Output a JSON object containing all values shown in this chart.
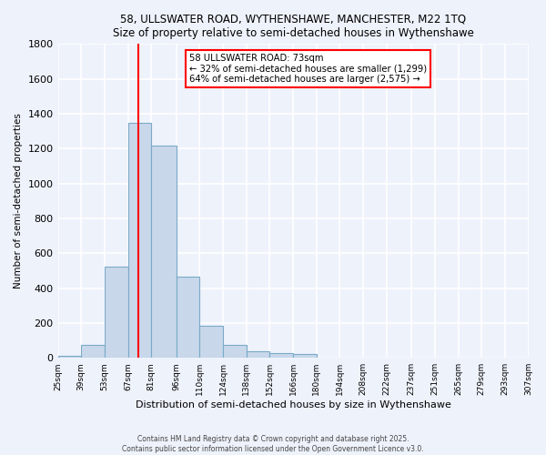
{
  "title1": "58, ULLSWATER ROAD, WYTHENSHAWE, MANCHESTER, M22 1TQ",
  "title2": "Size of property relative to semi-detached houses in Wythenshawe",
  "xlabel": "Distribution of semi-detached houses by size in Wythenshawe",
  "ylabel": "Number of semi-detached properties",
  "footer1": "Contains HM Land Registry data © Crown copyright and database right 2025.",
  "footer2": "Contains public sector information licensed under the Open Government Licence v3.0.",
  "bin_labels": [
    "25sqm",
    "39sqm",
    "53sqm",
    "67sqm",
    "81sqm",
    "96sqm",
    "110sqm",
    "124sqm",
    "138sqm",
    "152sqm",
    "166sqm",
    "180sqm",
    "194sqm",
    "208sqm",
    "222sqm",
    "237sqm",
    "251sqm",
    "265sqm",
    "279sqm",
    "293sqm",
    "307sqm"
  ],
  "bar_values": [
    12,
    75,
    525,
    1350,
    1215,
    465,
    185,
    75,
    40,
    25,
    20,
    0,
    0,
    0,
    0,
    0,
    0,
    0,
    0,
    0
  ],
  "bar_color": "#c8d8ea",
  "bar_edge_color": "#7aaac8",
  "vline_x": 73,
  "vline_color": "red",
  "annotation_title": "58 ULLSWATER ROAD: 73sqm",
  "annotation_line1": "← 32% of semi-detached houses are smaller (1,299)",
  "annotation_line2": "64% of semi-detached houses are larger (2,575) →",
  "annotation_box_color": "white",
  "annotation_box_edge": "red",
  "ylim": [
    0,
    1800
  ],
  "yticks": [
    0,
    200,
    400,
    600,
    800,
    1000,
    1200,
    1400,
    1600,
    1800
  ],
  "bg_color": "#eef2fb",
  "grid_color": "white",
  "bin_edges": [
    25,
    39,
    53,
    67,
    81,
    96,
    110,
    124,
    138,
    152,
    166,
    180,
    194,
    208,
    222,
    237,
    251,
    265,
    279,
    293,
    307
  ]
}
